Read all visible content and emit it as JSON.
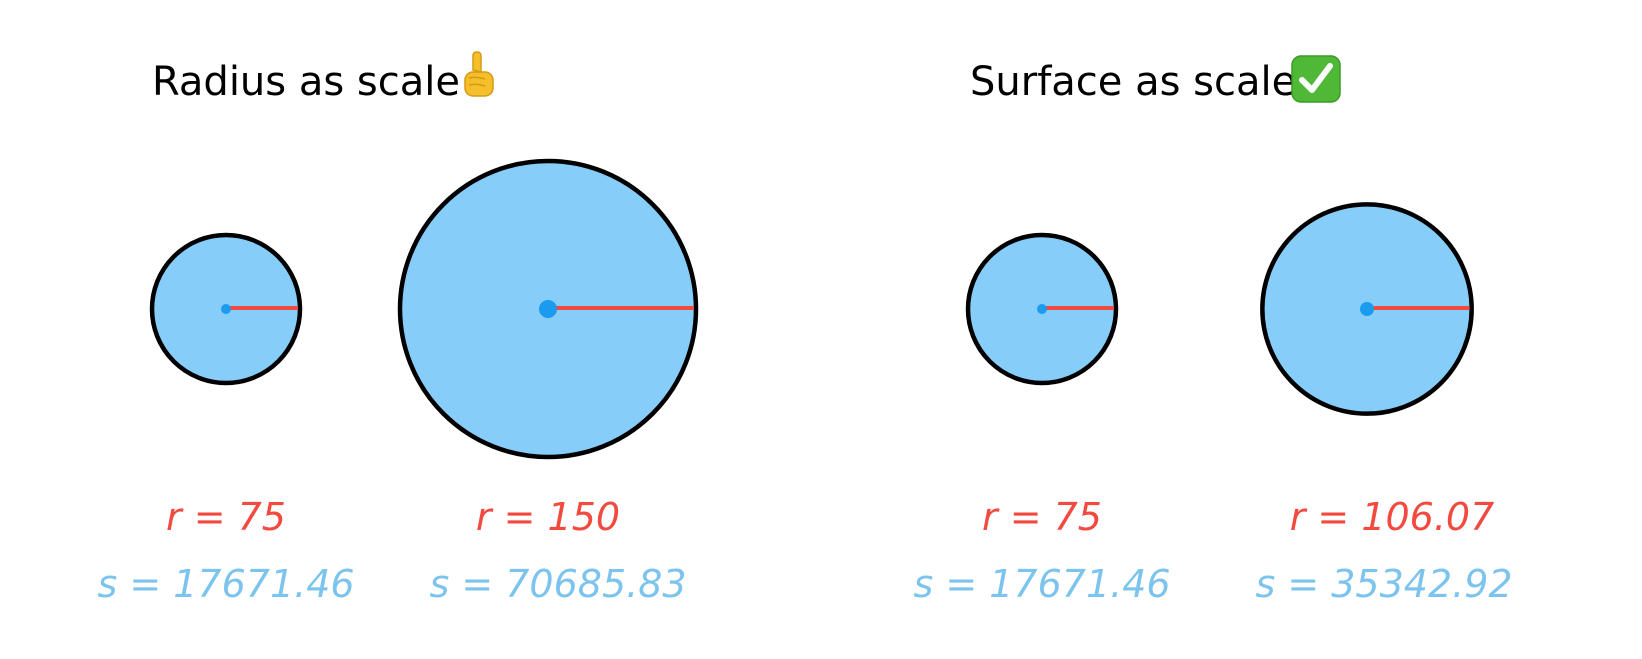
{
  "colors": {
    "fill": "#87cdf9",
    "outline": "#000000",
    "center_dot": "#1a9bf0",
    "radius_line": "#f24a3f",
    "radius_text": "#f24a3f",
    "surface_text": "#7cc4ee"
  },
  "panels": [
    {
      "title": "Radius as scale",
      "emoji_icon": "index-pointing-up-icon",
      "circles": [
        {
          "r": 75,
          "s": 17671.46,
          "r_label": "r = 75",
          "s_label": "s = 17671.46"
        },
        {
          "r": 150,
          "s": 70685.83,
          "r_label": "r = 150",
          "s_label": "s = 70685.83"
        }
      ]
    },
    {
      "title": "Surface as scale",
      "emoji_icon": "check-mark-button-icon",
      "circles": [
        {
          "r": 75,
          "s": 17671.46,
          "r_label": "r = 75",
          "s_label": "s = 17671.46"
        },
        {
          "r": 106.07,
          "s": 35342.92,
          "r_label": "r = 106.07",
          "s_label": "s = 35342.92"
        }
      ]
    }
  ]
}
